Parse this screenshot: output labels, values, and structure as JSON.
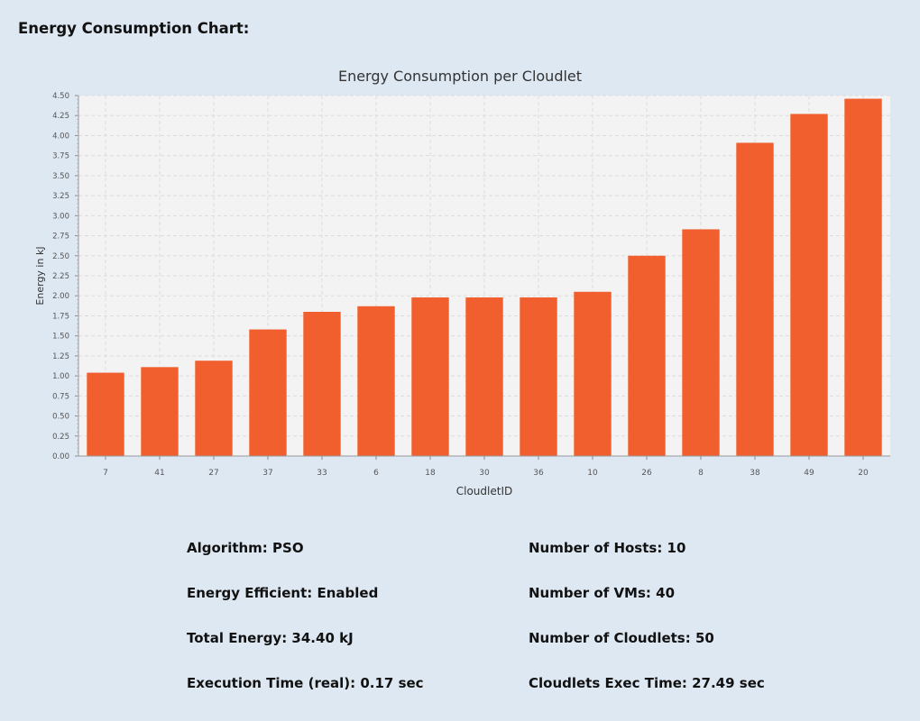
{
  "page": {
    "heading": "Energy Consumption Chart:"
  },
  "colors": {
    "bar": "#f05f2d",
    "plot_bg": "#f3f3f3",
    "background": "#dee8f3"
  },
  "chart_data": {
    "type": "bar",
    "title": "Energy Consumption per Cloudlet",
    "xlabel": "CloudletID",
    "ylabel": "Energy in kJ",
    "categories": [
      "7",
      "41",
      "27",
      "37",
      "33",
      "6",
      "18",
      "30",
      "36",
      "10",
      "26",
      "8",
      "38",
      "49",
      "20"
    ],
    "values": [
      1.04,
      1.11,
      1.19,
      1.58,
      1.8,
      1.87,
      1.98,
      1.98,
      1.98,
      2.05,
      2.5,
      2.83,
      3.91,
      4.27,
      4.46
    ],
    "ylim": [
      0,
      4.5
    ],
    "yticks": [
      "0.00",
      "0.25",
      "0.50",
      "0.75",
      "1.00",
      "1.25",
      "1.50",
      "1.75",
      "2.00",
      "2.25",
      "2.50",
      "2.75",
      "3.00",
      "3.25",
      "3.50",
      "3.75",
      "4.00",
      "4.25",
      "4.50"
    ],
    "grid": true,
    "legend": "none"
  },
  "stats": {
    "algorithm": "Algorithm: PSO",
    "energy_efficient": "Energy Efficient: Enabled",
    "total_energy": "Total Energy: 34.40 kJ",
    "execution_time": "Execution Time (real): 0.17 sec",
    "hosts": "Number of Hosts: 10",
    "vms": "Number of VMs: 40",
    "cloudlets": "Number of Cloudlets: 50",
    "cloudlets_exec_time": "Cloudlets Exec Time: 27.49 sec"
  }
}
